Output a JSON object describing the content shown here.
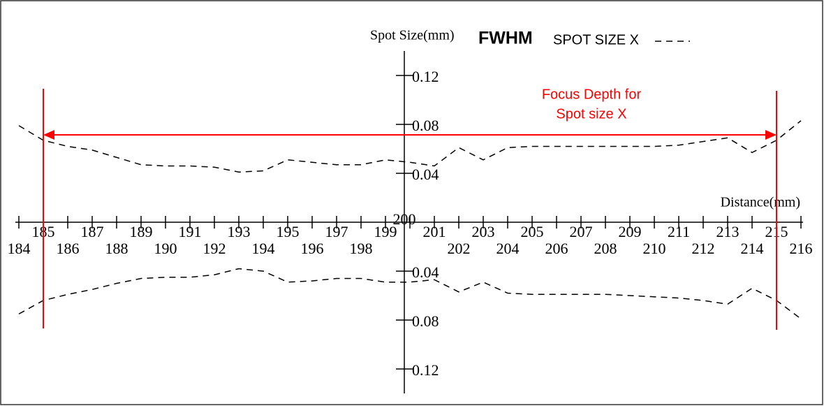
{
  "chart_data": {
    "type": "line",
    "legend_title": "FWHM",
    "ylabel": "Spot Size(mm)",
    "xlabel": "Distance(mm)",
    "annotation": [
      "Focus Depth for",
      "Spot size X"
    ],
    "annotation_color": "#ff0000",
    "focus_range": [
      185,
      215
    ],
    "x": [
      184,
      185,
      186,
      187,
      188,
      189,
      190,
      191,
      192,
      193,
      194,
      195,
      196,
      197,
      198,
      199,
      200,
      201,
      202,
      203,
      204,
      205,
      206,
      207,
      208,
      209,
      210,
      211,
      212,
      213,
      214,
      215,
      216
    ],
    "series": [
      {
        "name": "SPOT SIZE X",
        "color": "#000000",
        "values": [
          0.079,
          0.067,
          0.062,
          0.059,
          0.053,
          0.047,
          0.046,
          0.046,
          0.045,
          0.041,
          0.042,
          0.051,
          0.049,
          0.047,
          0.047,
          0.051,
          0.049,
          0.046,
          0.061,
          0.051,
          0.061,
          0.062,
          0.062,
          0.062,
          0.062,
          0.062,
          0.062,
          0.063,
          0.066,
          0.069,
          0.057,
          0.067,
          0.083
        ]
      },
      {
        "color": "#000000",
        "values": [
          -0.075,
          -0.064,
          -0.059,
          -0.055,
          -0.05,
          -0.046,
          -0.045,
          -0.045,
          -0.043,
          -0.038,
          -0.04,
          -0.049,
          -0.048,
          -0.046,
          -0.046,
          -0.049,
          -0.049,
          -0.047,
          -0.057,
          -0.049,
          -0.058,
          -0.059,
          -0.059,
          -0.059,
          -0.059,
          -0.06,
          -0.061,
          -0.062,
          -0.064,
          -0.067,
          -0.054,
          -0.064,
          -0.079
        ]
      }
    ],
    "xlim": [
      184,
      216
    ],
    "xticks": [
      184,
      185,
      186,
      187,
      188,
      189,
      190,
      191,
      192,
      193,
      194,
      195,
      196,
      197,
      198,
      199,
      200,
      201,
      202,
      203,
      204,
      205,
      206,
      207,
      208,
      209,
      210,
      211,
      212,
      213,
      214,
      215,
      216
    ],
    "ylim": [
      -0.14,
      0.14
    ],
    "yticks": [
      {
        "value": -0.12,
        "label": "0.12"
      },
      {
        "value": -0.08,
        "label": "0.08"
      },
      {
        "value": -0.04,
        "label": "0.04"
      },
      0.04,
      0.08,
      0.12
    ]
  }
}
